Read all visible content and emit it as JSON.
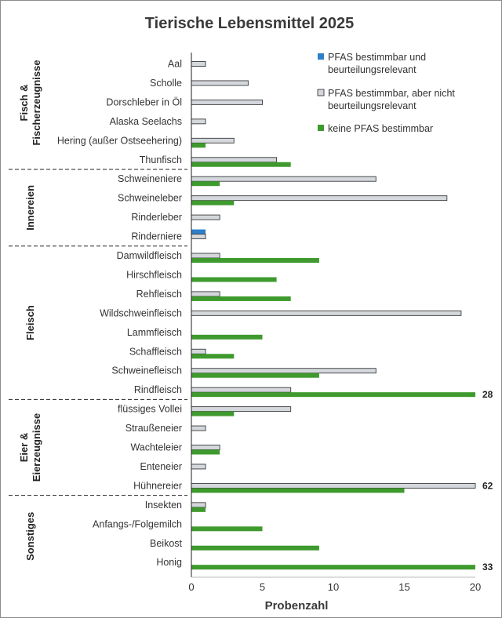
{
  "chart_data": {
    "type": "bar",
    "orientation": "horizontal",
    "title": "Tierische Lebensmittel 2025",
    "xlabel": "Probenzahl",
    "ylabel": "",
    "xlim": [
      0,
      20
    ],
    "x_ticks": [
      "0",
      "5",
      "10",
      "15",
      "20"
    ],
    "grid": false,
    "legend_position": "top-right",
    "series": [
      {
        "name": "PFAS bestimmbar und beurteilungsrelevant",
        "color": "#2e7fc9"
      },
      {
        "name": "PFAS bestimmbar, aber nicht beurteilungsrelevant",
        "color": "#d4d8dc"
      },
      {
        "name": "keine PFAS bestimmbar",
        "color": "#3f9a2e"
      }
    ],
    "groups": [
      {
        "name": "Fisch & Fischerzeugnisse",
        "label_lines": [
          "Fisch &",
          "Fischerzeugnisse"
        ]
      },
      {
        "name": "Innereien",
        "label_lines": [
          "Innereien"
        ]
      },
      {
        "name": "Fleisch",
        "label_lines": [
          "Fleisch"
        ]
      },
      {
        "name": "Eier & Eierzeugnisse",
        "label_lines": [
          "Eier &",
          "Eierzeugnisse"
        ]
      },
      {
        "name": "Sonstiges",
        "label_lines": [
          "Sonstiges"
        ]
      }
    ],
    "categories": [
      {
        "group": 0,
        "label": "Aal",
        "values": [
          0,
          1,
          0
        ]
      },
      {
        "group": 0,
        "label": "Scholle",
        "values": [
          0,
          4,
          0
        ]
      },
      {
        "group": 0,
        "label": "Dorschleber in Öl",
        "values": [
          0,
          5,
          0
        ]
      },
      {
        "group": 0,
        "label": "Alaska Seelachs",
        "values": [
          0,
          1,
          0
        ]
      },
      {
        "group": 0,
        "label": "Hering (außer Ostseehering)",
        "values": [
          0,
          3,
          1
        ]
      },
      {
        "group": 0,
        "label": "Thunfisch",
        "values": [
          0,
          6,
          7
        ]
      },
      {
        "group": 1,
        "label": "Schweineniere",
        "values": [
          0,
          13,
          2
        ]
      },
      {
        "group": 1,
        "label": "Schweineleber",
        "values": [
          0,
          18,
          3
        ]
      },
      {
        "group": 1,
        "label": "Rinderleber",
        "values": [
          0,
          2,
          0
        ]
      },
      {
        "group": 1,
        "label": "Rinderniere",
        "values": [
          1,
          1,
          0
        ]
      },
      {
        "group": 2,
        "label": "Damwildfleisch",
        "values": [
          0,
          2,
          9
        ]
      },
      {
        "group": 2,
        "label": "Hirschfleisch",
        "values": [
          0,
          0,
          6
        ]
      },
      {
        "group": 2,
        "label": "Rehfleisch",
        "values": [
          0,
          2,
          7
        ]
      },
      {
        "group": 2,
        "label": "Wildschweinfleisch",
        "values": [
          0,
          19,
          0
        ]
      },
      {
        "group": 2,
        "label": "Lammfleisch",
        "values": [
          0,
          0,
          5
        ]
      },
      {
        "group": 2,
        "label": "Schaffleisch",
        "values": [
          0,
          1,
          3
        ]
      },
      {
        "group": 2,
        "label": "Schweinefleisch",
        "values": [
          0,
          13,
          9
        ]
      },
      {
        "group": 2,
        "label": "Rindfleisch",
        "values": [
          0,
          7,
          28
        ]
      },
      {
        "group": 3,
        "label": "flüssiges Vollei",
        "values": [
          0,
          7,
          3
        ]
      },
      {
        "group": 3,
        "label": "Straußeneier",
        "values": [
          0,
          1,
          0
        ]
      },
      {
        "group": 3,
        "label": "Wachteleier",
        "values": [
          0,
          2,
          2
        ]
      },
      {
        "group": 3,
        "label": "Enteneier",
        "values": [
          0,
          1,
          0
        ]
      },
      {
        "group": 3,
        "label": "Hühnereier",
        "values": [
          0,
          62,
          15
        ]
      },
      {
        "group": 4,
        "label": "Insekten",
        "values": [
          0,
          1,
          1
        ]
      },
      {
        "group": 4,
        "label": "Anfangs-/Folgemilch",
        "values": [
          0,
          0,
          5
        ]
      },
      {
        "group": 4,
        "label": "Beikost",
        "values": [
          0,
          0,
          9
        ]
      },
      {
        "group": 4,
        "label": "Honig",
        "values": [
          0,
          0,
          33
        ]
      }
    ],
    "overflow_labels": [
      "28",
      "62",
      "33"
    ]
  }
}
